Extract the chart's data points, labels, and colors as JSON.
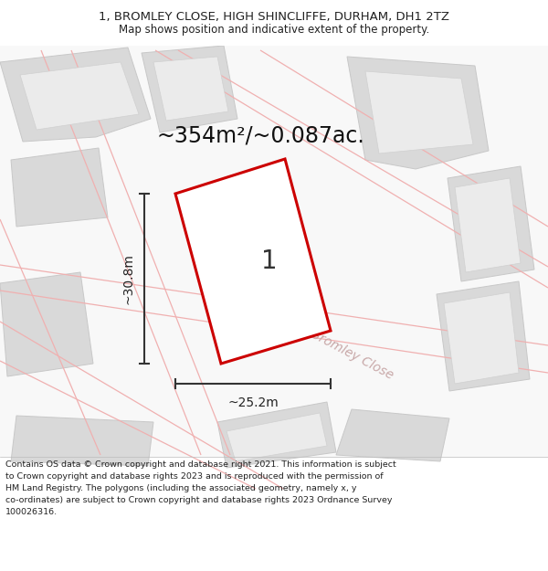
{
  "title_line1": "1, BROMLEY CLOSE, HIGH SHINCLIFFE, DURHAM, DH1 2TZ",
  "title_line2": "Map shows position and indicative extent of the property.",
  "area_text": "~354m²/~0.087ac.",
  "label_number": "1",
  "dim_width": "~25.2m",
  "dim_height": "~30.8m",
  "street_label": "Bromley Close",
  "footer_lines": [
    "Contains OS data © Crown copyright and database right 2021. This information is subject",
    "to Crown copyright and database rights 2023 and is reproduced with the permission of",
    "HM Land Registry. The polygons (including the associated geometry, namely x, y",
    "co-ordinates) are subject to Crown copyright and database rights 2023 Ordnance Survey",
    "100026316."
  ],
  "bg_color": "#ffffff",
  "building_fill": "#d9d9d9",
  "building_edge": "#c8c8c8",
  "inner_fill": "#ebebeb",
  "inner_edge": "#d0d0d0",
  "main_plot_fill": "#ffffff",
  "main_plot_edge": "#cc0000",
  "pink_line_color": "#f0b0b0",
  "dim_line_color": "#333333",
  "title_color": "#222222",
  "footer_color": "#222222",
  "street_label_color": "#c8a8a8",
  "title_fontsize": 9.5,
  "subtitle_fontsize": 8.5,
  "area_fontsize": 17,
  "label_fontsize": 20,
  "dim_fontsize": 10,
  "street_fontsize": 10,
  "footer_fontsize": 6.8
}
